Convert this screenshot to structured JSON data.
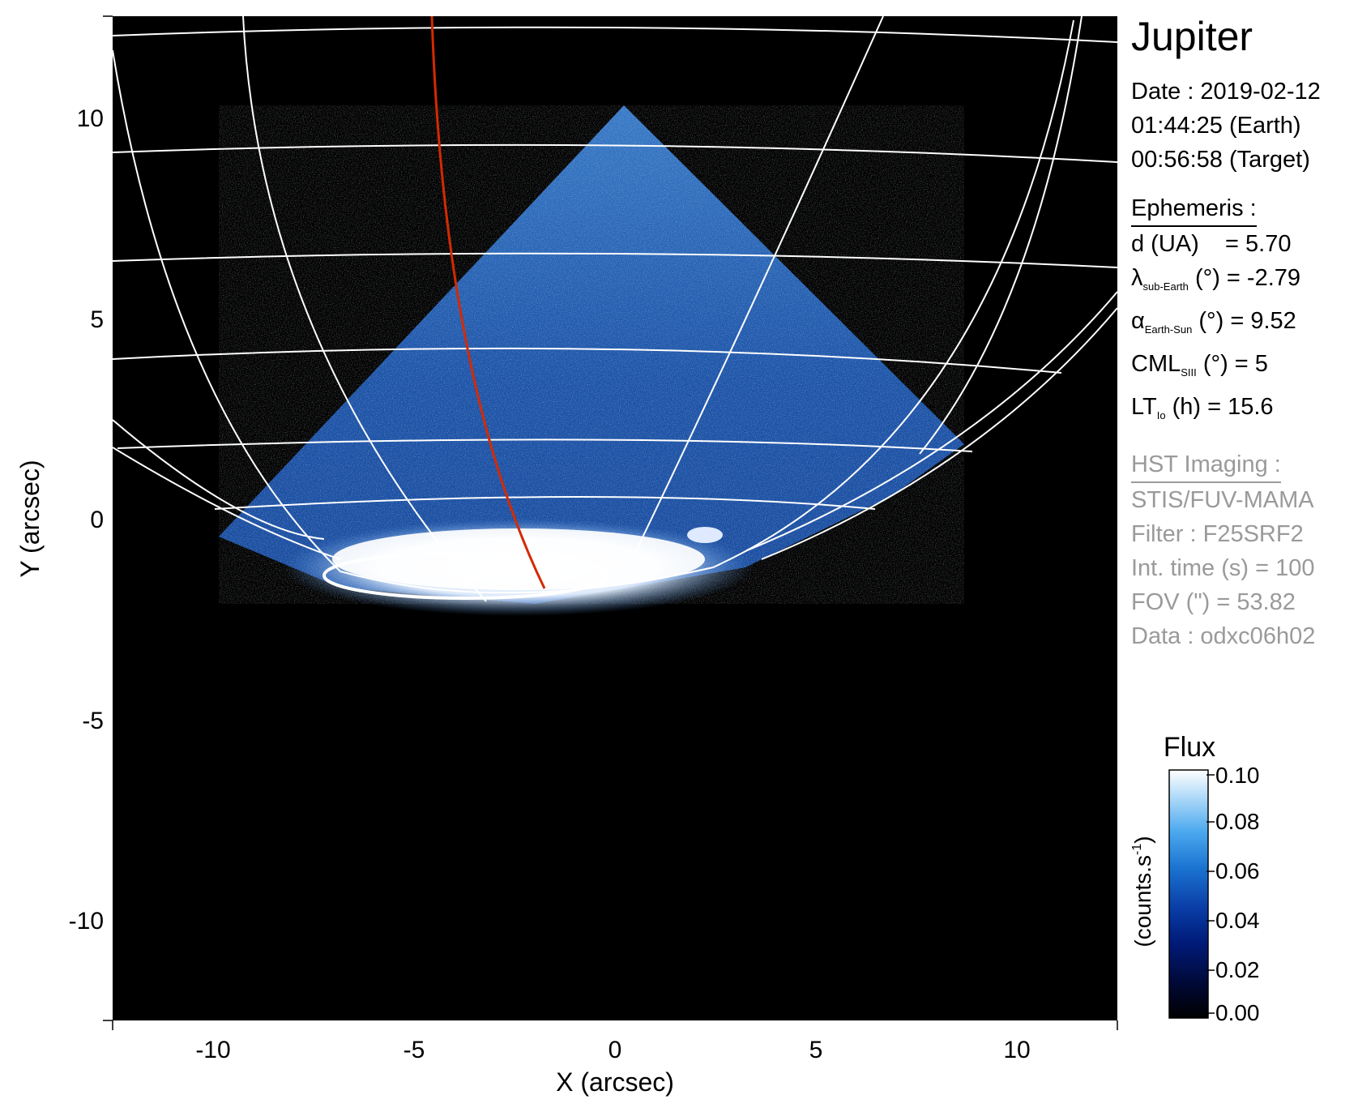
{
  "figure": {
    "xlabel": "X (arcsec)",
    "ylabel": "Y (arcsec)",
    "xticks": [
      -10,
      -5,
      0,
      5,
      10
    ],
    "yticks": [
      10,
      5,
      0,
      -5,
      -10
    ],
    "xlim": [
      -12.5,
      12.5
    ],
    "ylim": [
      -12.5,
      12.5
    ],
    "red_line_color": "#d42a00",
    "grid_color": "#ffffff",
    "background_color": "#000000"
  },
  "panel": {
    "planet": "Jupiter",
    "date_line": "Date : 2019-02-12",
    "earth_time": "01:44:25 (Earth)",
    "target_time": "00:56:58 (Target)",
    "ephemeris": {
      "title": "Ephemeris :",
      "d": {
        "label": "d (UA)",
        "value": "= 5.70"
      },
      "lambda": {
        "symbol": "λ",
        "sub": "sub-Earth",
        "unit": "(°)",
        "value": "= -2.79"
      },
      "alpha": {
        "symbol": "α",
        "sub": "Earth-Sun",
        "unit": "(°)",
        "value": "= 9.52"
      },
      "cml": {
        "symbol": "CML",
        "sub": "SIII",
        "unit": "(°)",
        "value": "= 5"
      },
      "lt": {
        "symbol": "LT",
        "sub": "Io",
        "unit": "(h)",
        "value": "= 15.6"
      }
    },
    "imaging": {
      "title": "HST Imaging :",
      "instrument": "STIS/FUV-MAMA",
      "filter": "Filter : F25SRF2",
      "int_time": "Int. time (s) = 100",
      "fov": "FOV (\") = 53.82",
      "data": "Data : odxc06h02"
    }
  },
  "colorbar": {
    "title": "Flux",
    "unit_label": "(counts.s",
    "unit_sup": "-1",
    "unit_close": ")",
    "ticks": [
      "0.10",
      "0.08",
      "0.06",
      "0.04",
      "0.02",
      "0.00"
    ],
    "colors": [
      "#000000",
      "#000a3a",
      "#001a78",
      "#0a3fa8",
      "#1a72d0",
      "#4aa8ee",
      "#a8d6f8",
      "#ffffff"
    ]
  }
}
